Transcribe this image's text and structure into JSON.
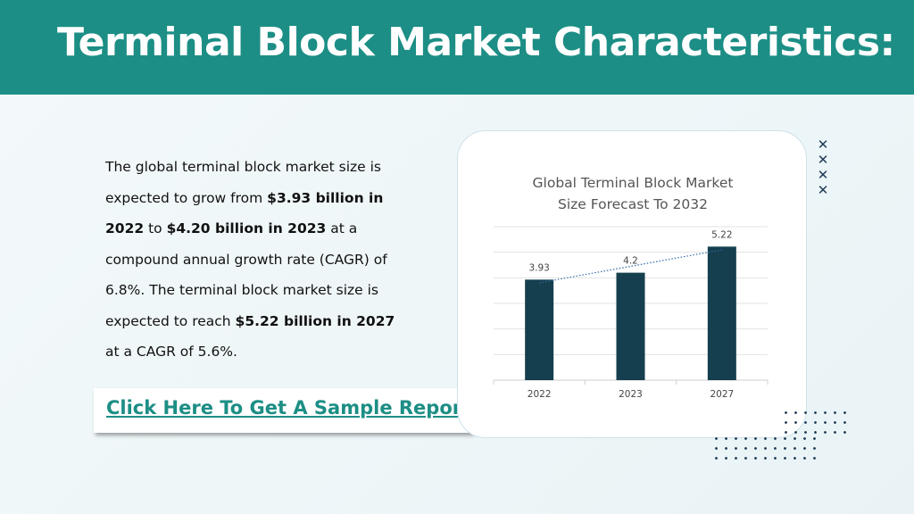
{
  "slide": {
    "title": "Terminal Block Market Characteristics:",
    "paragraph": {
      "p1": "The global terminal block market size is expected to grow from ",
      "b1": "$3.93 billion in 2022",
      "p2": " to ",
      "b2": "$4.20 billion in 2023",
      "p3": " at a compound annual growth rate (CAGR) of 6.8%. The terminal block market size is expected to reach ",
      "b3": "$5.22 billion in 2027",
      "p4": " at a CAGR of 5.6%."
    },
    "cta_label": "Click Here To Get A Sample Report",
    "decor": {
      "x_mark": "✕"
    },
    "colors": {
      "header": "#1c8e85",
      "bar": "#153f4e",
      "trendline": "#2f6aa8",
      "link": "#1c8e85"
    }
  },
  "chart_data": {
    "type": "bar",
    "title_lines": [
      "Global Terminal Block Market",
      "Size Forecast To 2032"
    ],
    "categories": [
      "2022",
      "2023",
      "2027"
    ],
    "values": [
      3.93,
      4.2,
      5.22
    ],
    "value_labels": [
      "3.93",
      "4.2",
      "5.22"
    ],
    "ylim": [
      0,
      6
    ],
    "grid": true,
    "trendline": "dotted linear",
    "legend": "none"
  }
}
